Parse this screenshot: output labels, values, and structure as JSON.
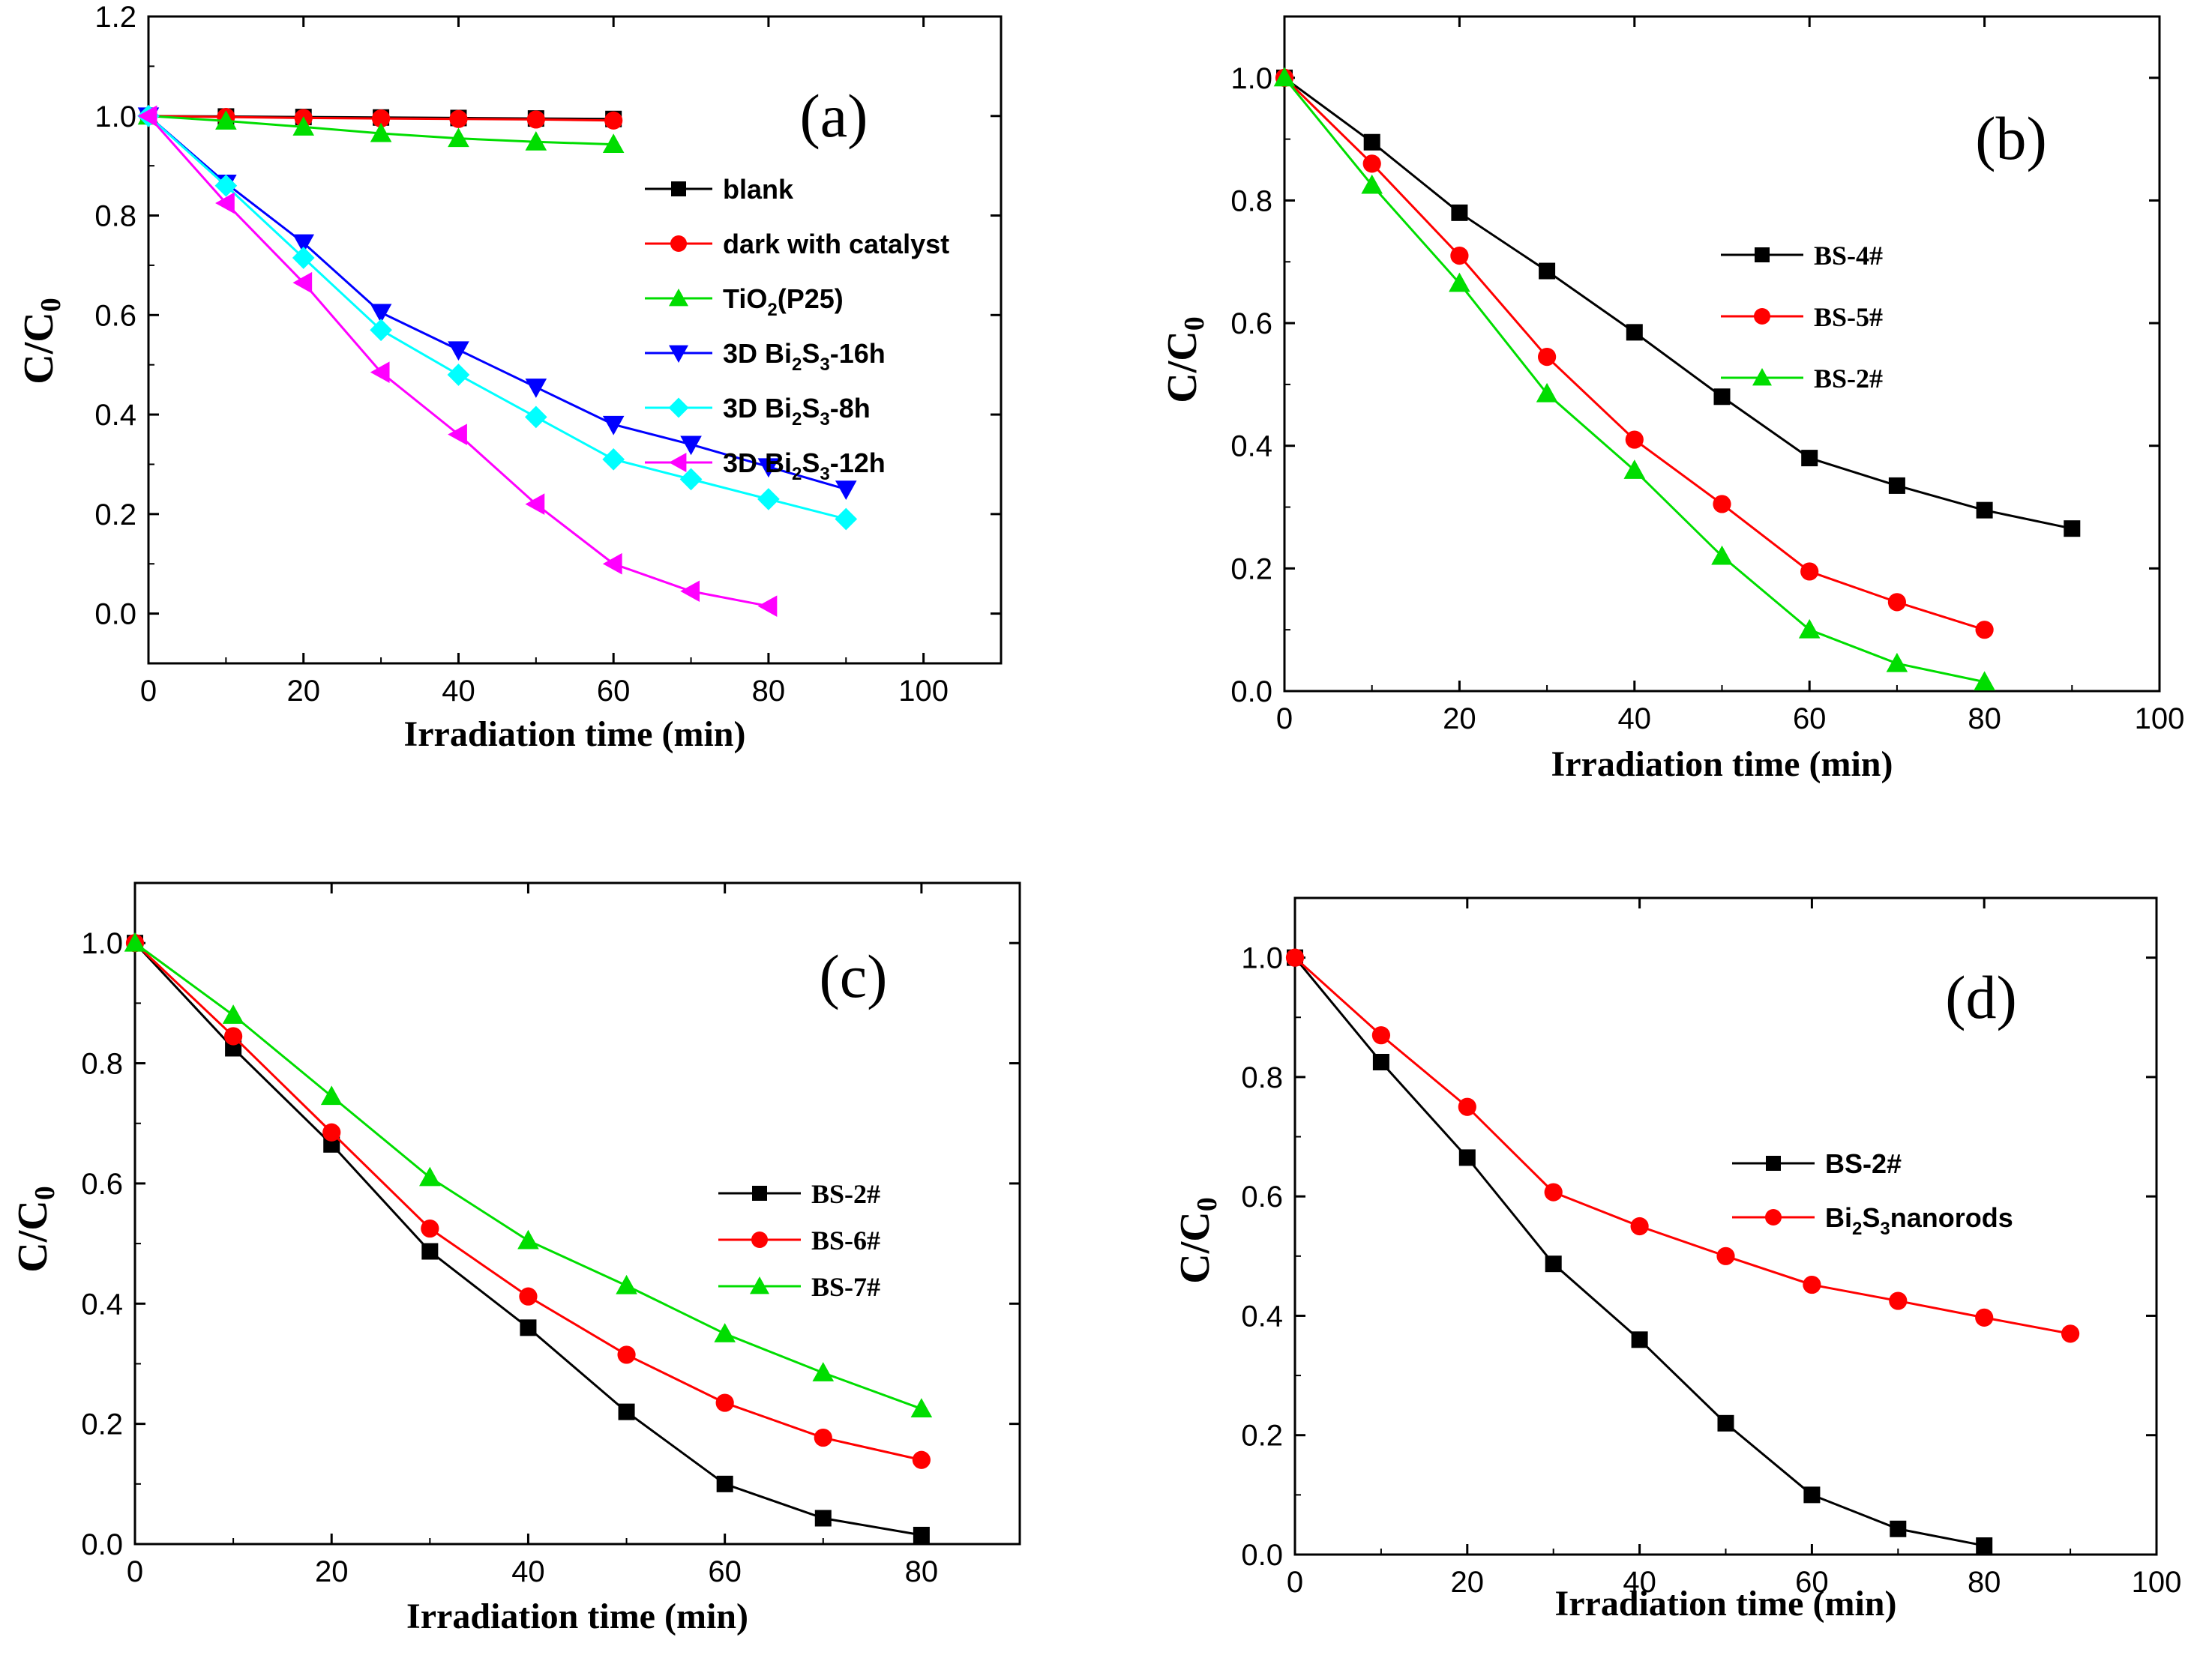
{
  "chart_data": [
    {
      "id": "a",
      "type": "line",
      "panel_label": "(a)",
      "xlabel": "Irradiation time (min)",
      "ylabel": {
        "main": "C/C",
        "sub": "0"
      },
      "xlim": [
        0,
        110
      ],
      "ylim": [
        -0.1,
        1.2
      ],
      "xticks": [
        0,
        20,
        40,
        60,
        80,
        100
      ],
      "xtick_labels": [
        "0",
        "20",
        "40",
        "60",
        "80",
        "100"
      ],
      "yticks": [
        0.0,
        0.2,
        0.4,
        0.6,
        0.8,
        1.0,
        1.2
      ],
      "ytick_labels": [
        "0.0",
        "0.2",
        "0.4",
        "0.6",
        "0.8",
        "1.0",
        "1.2"
      ],
      "legend_position": "right",
      "series": [
        {
          "name": "blank",
          "label": {
            "main": "blank"
          },
          "color": "#000000",
          "marker": "square",
          "x": [
            0,
            10,
            20,
            30,
            40,
            50,
            60
          ],
          "y": [
            1.0,
            0.999,
            0.998,
            0.997,
            0.996,
            0.995,
            0.994
          ]
        },
        {
          "name": "dark with catalyst",
          "label": {
            "main": "dark with catalyst"
          },
          "color": "#ff0000",
          "marker": "circle",
          "x": [
            0,
            10,
            20,
            30,
            40,
            50,
            60
          ],
          "y": [
            1.0,
            0.998,
            0.996,
            0.995,
            0.994,
            0.993,
            0.991
          ]
        },
        {
          "name": "TiO2(P25)",
          "label": {
            "main": "TiO",
            "sub": "2",
            "tail": "(P25)"
          },
          "color": "#00dd00",
          "marker": "triangle-up",
          "x": [
            0,
            10,
            20,
            30,
            40,
            50,
            60
          ],
          "y": [
            1.0,
            0.99,
            0.978,
            0.965,
            0.955,
            0.948,
            0.943
          ]
        },
        {
          "name": "3D Bi2S3-16h",
          "label": {
            "main": "3D Bi",
            "sub": "2",
            "mid": "S",
            "sub2": "3",
            "tail": "-16h"
          },
          "color": "#0000ff",
          "marker": "triangle-down",
          "x": [
            0,
            10,
            20,
            30,
            40,
            50,
            60,
            70,
            80,
            90
          ],
          "y": [
            1.0,
            0.865,
            0.745,
            0.605,
            0.53,
            0.455,
            0.38,
            0.34,
            0.295,
            0.25
          ]
        },
        {
          "name": "3D Bi2S3-8h",
          "label": {
            "main": "3D Bi",
            "sub": "2",
            "mid": "S",
            "sub2": "3",
            "tail": "-8h"
          },
          "color": "#00ffff",
          "marker": "diamond",
          "x": [
            0,
            10,
            20,
            30,
            40,
            50,
            60,
            70,
            80,
            90
          ],
          "y": [
            1.0,
            0.86,
            0.715,
            0.57,
            0.48,
            0.395,
            0.31,
            0.27,
            0.23,
            0.19
          ]
        },
        {
          "name": "3D Bi2S3-12h",
          "label": {
            "main": "3D Bi",
            "sub": "2",
            "mid": "S",
            "sub2": "3",
            "tail": "-12h"
          },
          "color": "#ff00ff",
          "marker": "triangle-left",
          "x": [
            0,
            10,
            20,
            30,
            40,
            50,
            60,
            70,
            80
          ],
          "y": [
            1.0,
            0.825,
            0.665,
            0.485,
            0.36,
            0.22,
            0.1,
            0.045,
            0.015
          ]
        }
      ]
    },
    {
      "id": "b",
      "type": "line",
      "panel_label": "(b)",
      "xlabel": "Irradiation time (min)",
      "ylabel": {
        "main": "C/C",
        "sub": "0"
      },
      "xlim": [
        0,
        100
      ],
      "ylim": [
        0.0,
        1.1
      ],
      "xticks": [
        0,
        20,
        40,
        60,
        80,
        100
      ],
      "xtick_labels": [
        "0",
        "20",
        "40",
        "60",
        "80",
        "100"
      ],
      "yticks": [
        0.0,
        0.2,
        0.4,
        0.6,
        0.8,
        1.0
      ],
      "ytick_labels": [
        "0.0",
        "0.2",
        "0.4",
        "0.6",
        "0.8",
        "1.0"
      ],
      "legend_position": "center",
      "series": [
        {
          "name": "BS-4#",
          "label": {
            "main": "BS-4#"
          },
          "color": "#000000",
          "marker": "square",
          "x": [
            0,
            10,
            20,
            30,
            40,
            50,
            60,
            70,
            80,
            90
          ],
          "y": [
            1.0,
            0.895,
            0.78,
            0.685,
            0.585,
            0.48,
            0.38,
            0.335,
            0.295,
            0.265
          ]
        },
        {
          "name": "BS-5#",
          "label": {
            "main": "BS-5#"
          },
          "color": "#ff0000",
          "marker": "circle",
          "x": [
            0,
            10,
            20,
            30,
            40,
            50,
            60,
            70,
            80
          ],
          "y": [
            1.0,
            0.86,
            0.71,
            0.545,
            0.41,
            0.305,
            0.195,
            0.145,
            0.1
          ]
        },
        {
          "name": "BS-2#",
          "label": {
            "main": "BS-2#"
          },
          "color": "#00dd00",
          "marker": "triangle-up",
          "x": [
            0,
            10,
            20,
            30,
            40,
            50,
            60,
            70,
            80
          ],
          "y": [
            1.0,
            0.825,
            0.665,
            0.485,
            0.36,
            0.22,
            0.1,
            0.045,
            0.015
          ]
        }
      ]
    },
    {
      "id": "c",
      "type": "line",
      "panel_label": "(c)",
      "xlabel": "Irradiation time (min)",
      "ylabel": {
        "main": "C/C",
        "sub": "0"
      },
      "xlim": [
        0,
        90
      ],
      "ylim": [
        0.0,
        1.1
      ],
      "xticks": [
        0,
        20,
        40,
        60,
        80
      ],
      "xtick_labels": [
        "0",
        "20",
        "40",
        "60",
        "80"
      ],
      "yticks": [
        0.0,
        0.2,
        0.4,
        0.6,
        0.8,
        1.0
      ],
      "ytick_labels": [
        "0.0",
        "0.2",
        "0.4",
        "0.6",
        "0.8",
        "1.0"
      ],
      "legend_position": "right",
      "series": [
        {
          "name": "BS-2#",
          "label": {
            "main": "BS-2#"
          },
          "color": "#000000",
          "marker": "square",
          "x": [
            0,
            10,
            20,
            30,
            40,
            50,
            60,
            70,
            80
          ],
          "y": [
            1.0,
            0.825,
            0.665,
            0.487,
            0.36,
            0.22,
            0.1,
            0.043,
            0.015
          ]
        },
        {
          "name": "BS-6#",
          "label": {
            "main": "BS-6#"
          },
          "color": "#ff0000",
          "marker": "circle",
          "x": [
            0,
            10,
            20,
            30,
            40,
            50,
            60,
            70,
            80
          ],
          "y": [
            1.0,
            0.845,
            0.685,
            0.525,
            0.412,
            0.315,
            0.235,
            0.177,
            0.14
          ]
        },
        {
          "name": "BS-7#",
          "label": {
            "main": "BS-7#"
          },
          "color": "#00dd00",
          "marker": "triangle-up",
          "x": [
            0,
            10,
            20,
            30,
            40,
            50,
            60,
            70,
            80
          ],
          "y": [
            1.0,
            0.88,
            0.745,
            0.61,
            0.505,
            0.43,
            0.35,
            0.285,
            0.225
          ]
        }
      ]
    },
    {
      "id": "d",
      "type": "line",
      "panel_label": "(d)",
      "xlabel": "Irradiation time (min)",
      "ylabel": {
        "main": "C/C",
        "sub": "0"
      },
      "xlim": [
        0,
        100
      ],
      "ylim": [
        0.0,
        1.1
      ],
      "xticks": [
        0,
        20,
        40,
        60,
        80,
        100
      ],
      "xtick_labels": [
        "0",
        "20",
        "40",
        "60",
        "80",
        "100"
      ],
      "yticks": [
        0.0,
        0.2,
        0.4,
        0.6,
        0.8,
        1.0
      ],
      "ytick_labels": [
        "0.0",
        "0.2",
        "0.4",
        "0.6",
        "0.8",
        "1.0"
      ],
      "legend_position": "right",
      "series": [
        {
          "name": "BS-2#",
          "label": {
            "main": "BS-2#"
          },
          "color": "#000000",
          "marker": "square",
          "x": [
            0,
            10,
            20,
            30,
            40,
            50,
            60,
            70,
            80
          ],
          "y": [
            1.0,
            0.825,
            0.665,
            0.487,
            0.36,
            0.22,
            0.1,
            0.043,
            0.015
          ]
        },
        {
          "name": "Bi2S3nanorods",
          "label": {
            "main": "Bi",
            "sub": "2",
            "mid": "S",
            "sub2": "3",
            "tail": "nanorods"
          },
          "color": "#ff0000",
          "marker": "circle",
          "x": [
            0,
            10,
            20,
            30,
            40,
            50,
            60,
            70,
            80,
            90
          ],
          "y": [
            1.0,
            0.87,
            0.75,
            0.607,
            0.55,
            0.5,
            0.452,
            0.425,
            0.397,
            0.37
          ]
        }
      ]
    }
  ]
}
